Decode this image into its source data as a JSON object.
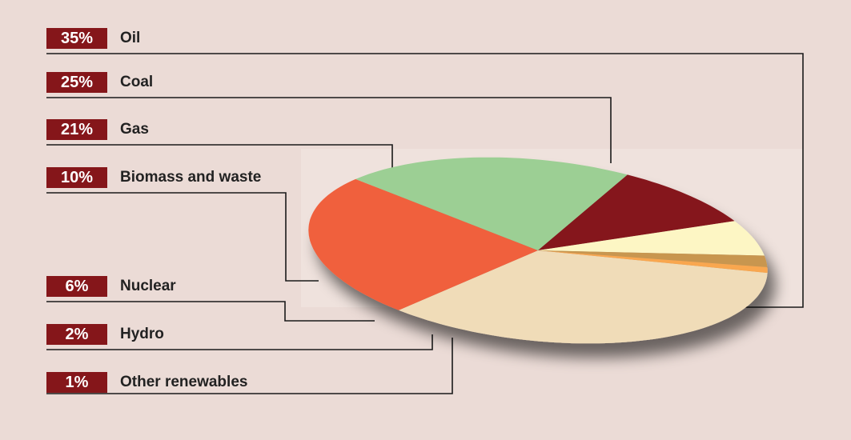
{
  "chart_data": {
    "type": "pie",
    "categories": [
      "Oil",
      "Coal",
      "Gas",
      "Biomass and waste",
      "Nuclear",
      "Hydro",
      "Other renewables"
    ],
    "values": [
      35,
      25,
      21,
      10,
      6,
      2,
      1
    ],
    "value_labels": [
      "35%",
      "25%",
      "21%",
      "10%",
      "6%",
      "2%",
      "1%"
    ],
    "colors": [
      "#f0dcb8",
      "#f0603e",
      "#9ccf94",
      "#85161a",
      "#fdf6c4",
      "#c8964f",
      "#f9a750"
    ],
    "legend": "left, labels with leader lines",
    "label_box_color": "#85161a",
    "background_color": "#ebdbd6",
    "start_direction": "clockwise from east, Oil first"
  }
}
